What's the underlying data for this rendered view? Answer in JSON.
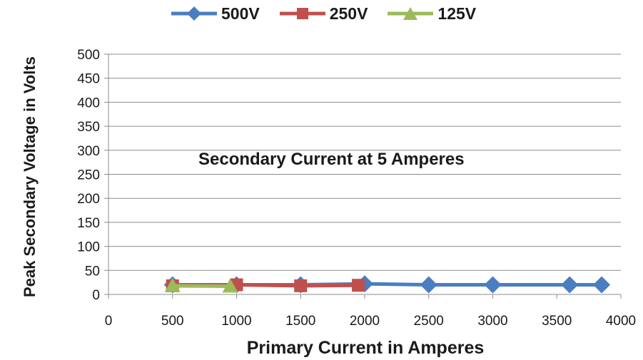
{
  "chart_data": {
    "type": "line",
    "annotation": "Secondary Current at 5 Amperes",
    "xlabel": "Primary  Current in Amperes",
    "ylabel": "Peak Secondary Voltage in Volts",
    "xlim": [
      0,
      4000
    ],
    "ylim": [
      0,
      500
    ],
    "x_ticks": [
      "0",
      "500",
      "1000",
      "1500",
      "2000",
      "2500",
      "3000",
      "3500",
      "4000"
    ],
    "y_ticks": [
      "0",
      "50",
      "100",
      "150",
      "200",
      "250",
      "300",
      "350",
      "400",
      "450",
      "500"
    ],
    "grid": "horizontal",
    "legend_position": "top",
    "series": [
      {
        "name": "500V",
        "color": "#4A7EC1",
        "marker": "diamond",
        "x": [
          500,
          1000,
          1500,
          2000,
          2500,
          3000,
          3600,
          3850
        ],
        "y": [
          20,
          20,
          20,
          22,
          20,
          20,
          20,
          20
        ]
      },
      {
        "name": "250V",
        "color": "#C0504D",
        "marker": "square",
        "x": [
          500,
          1000,
          1500,
          1950
        ],
        "y": [
          18,
          20,
          18,
          19
        ]
      },
      {
        "name": "125V",
        "color": "#9BBB59",
        "marker": "triangle",
        "x": [
          500,
          950
        ],
        "y": [
          18,
          17
        ]
      }
    ]
  }
}
